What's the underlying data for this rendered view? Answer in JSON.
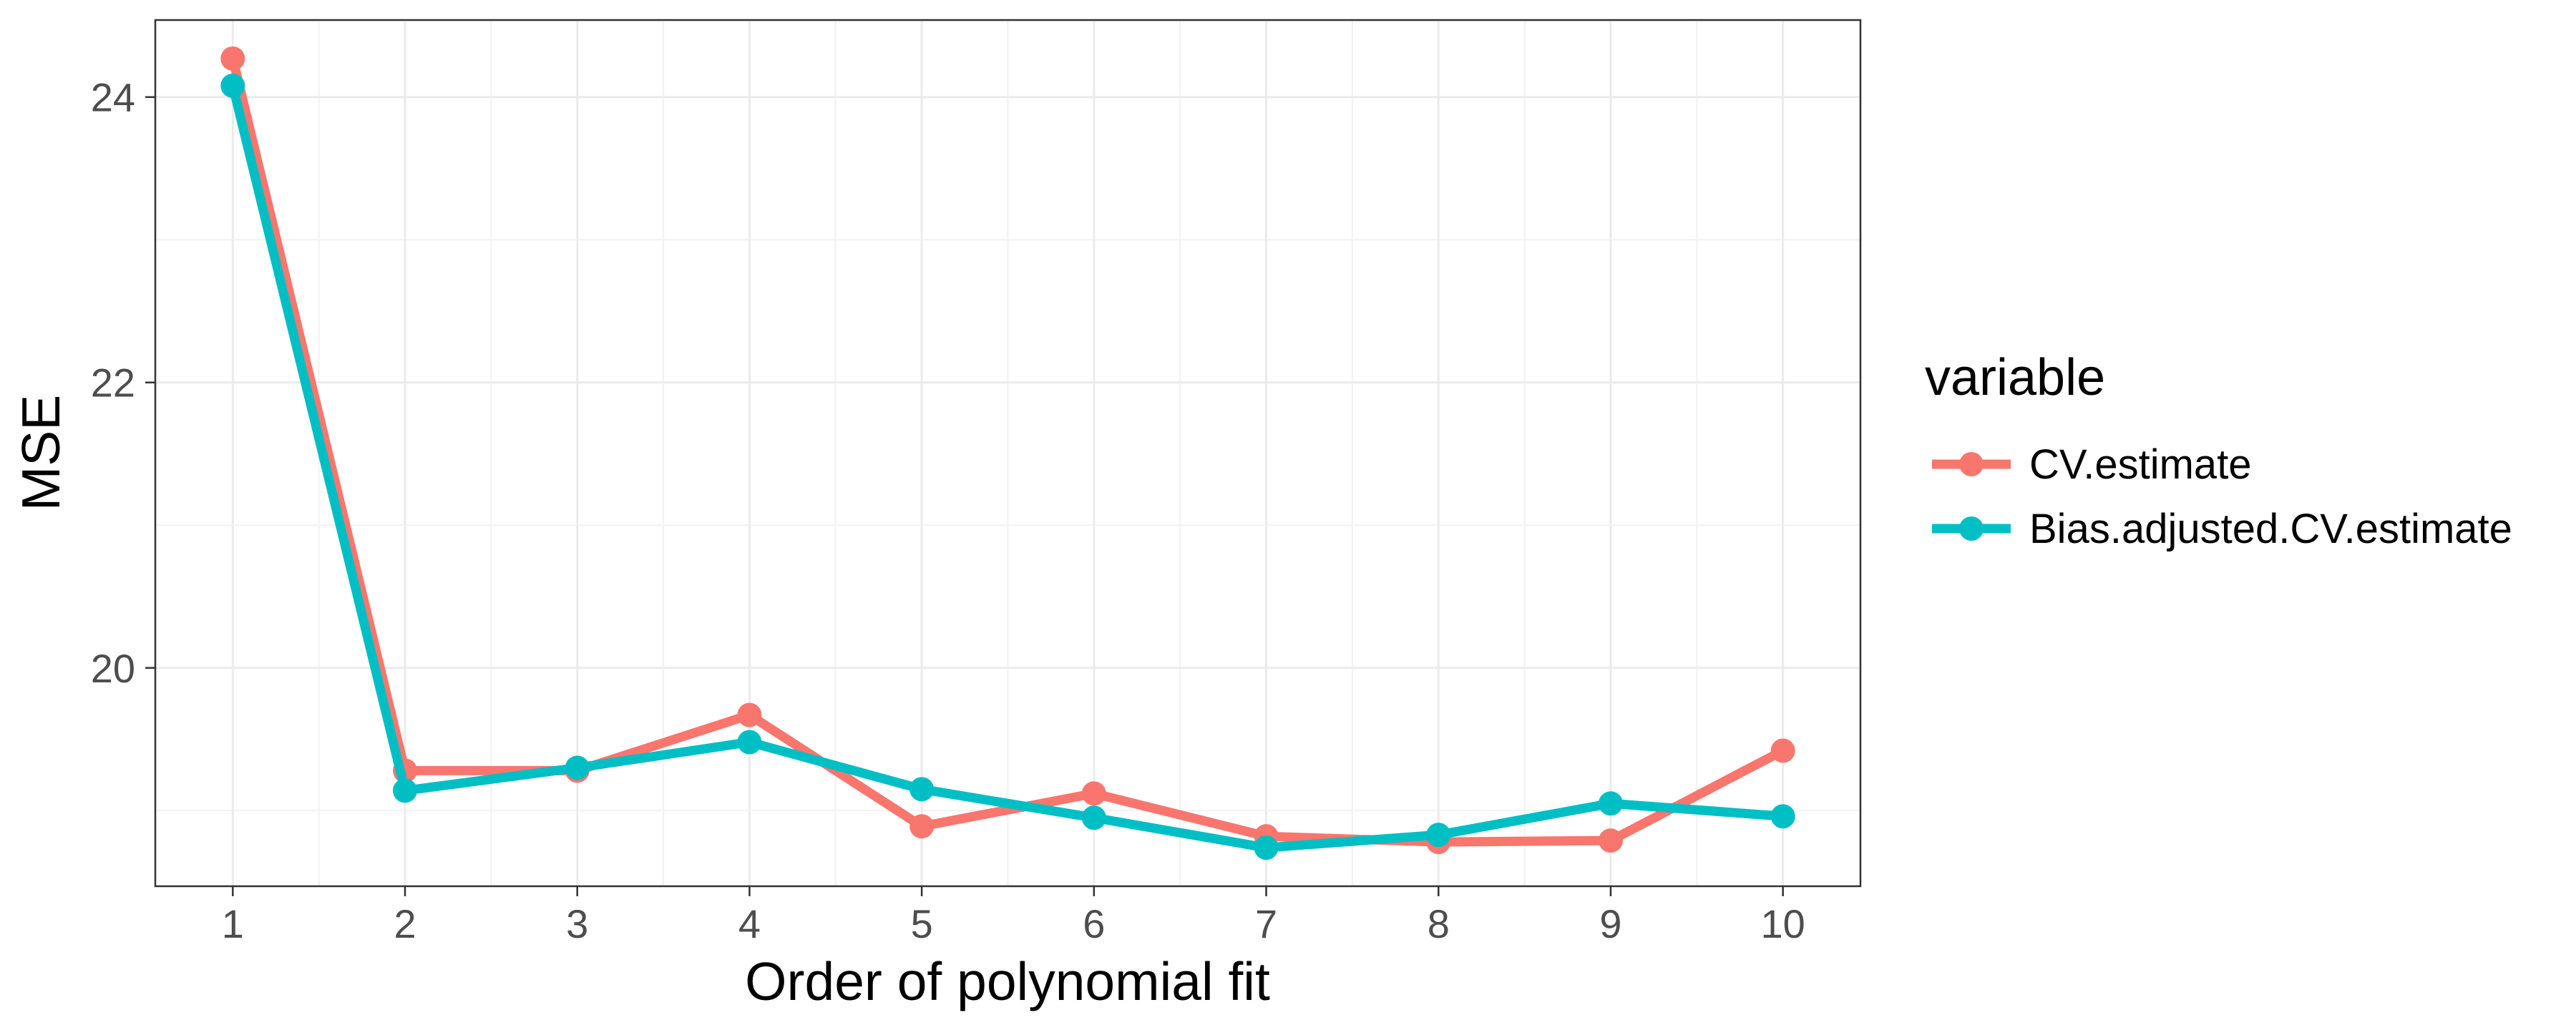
{
  "chart_data": {
    "type": "line",
    "x": [
      1,
      2,
      3,
      4,
      5,
      6,
      7,
      8,
      9,
      10
    ],
    "series": [
      {
        "name": "CV.estimate",
        "color": "#F8766D",
        "values": [
          24.27,
          19.28,
          19.28,
          19.67,
          18.89,
          19.12,
          18.82,
          18.78,
          18.79,
          19.42
        ]
      },
      {
        "name": "Bias.adjusted.CV.estimate",
        "color": "#00BFC4",
        "values": [
          24.08,
          19.14,
          19.3,
          19.48,
          19.15,
          18.95,
          18.74,
          18.83,
          19.05,
          18.96
        ]
      }
    ],
    "xlabel": "Order of polynomial fit",
    "ylabel": "MSE",
    "xlim": [
      0.55,
      10.45
    ],
    "ylim": [
      18.47,
      24.54
    ],
    "x_ticks": [
      "1",
      "2",
      "3",
      "4",
      "5",
      "6",
      "7",
      "8",
      "9",
      "10"
    ],
    "y_ticks": [
      20,
      22,
      24
    ],
    "y_tick_labels": [
      "20",
      "22",
      "24"
    ],
    "grid": true,
    "legend": {
      "title": "variable",
      "position": "right"
    }
  }
}
